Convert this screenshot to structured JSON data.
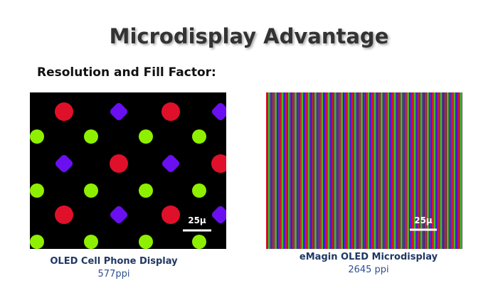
{
  "header": {
    "title": "Microdisplay Advantage",
    "subtitle": "Resolution and Fill Factor:"
  },
  "panels": [
    {
      "scale_label": "25µ",
      "caption": "OLED Cell Phone Display",
      "detail": "577ppi"
    },
    {
      "scale_label": "25µ",
      "caption": "eMagin OLED Microdisplay",
      "detail": "2645 ppi"
    }
  ]
}
